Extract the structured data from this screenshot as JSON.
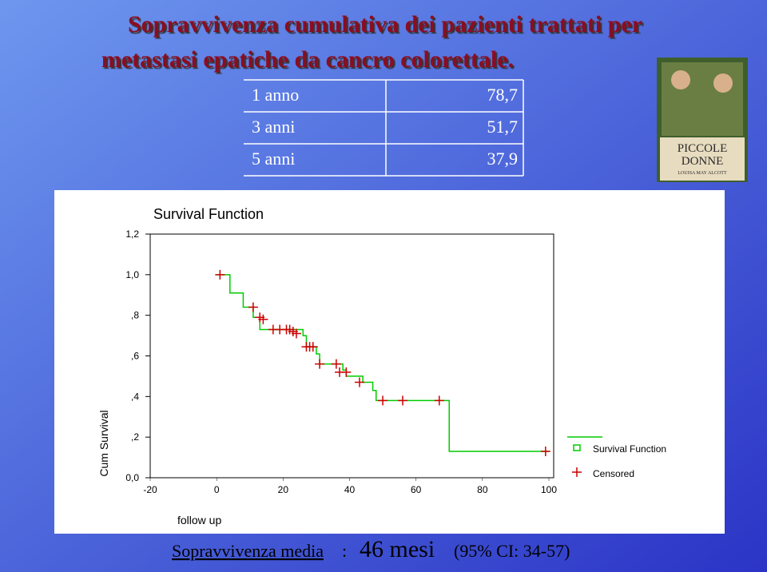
{
  "title": [
    "Sopravvivenza cumulativa dei pazienti trattati per",
    "metastasi epatiche da cancro colorettale."
  ],
  "table": {
    "rows": [
      [
        "1 anno",
        "78,7"
      ],
      [
        "3 anni",
        "51,7"
      ],
      [
        "5 anni",
        "37,9"
      ]
    ]
  },
  "book": {
    "title": [
      "PICCOLE",
      "DONNE"
    ],
    "author": "LOUISA MAY ALCOTT"
  },
  "footer": {
    "label": "Sopravvivenza media",
    "colon": ":",
    "value": "46 mesi",
    "ci": "(95% CI: 34-57)"
  },
  "chart_data": {
    "type": "line",
    "title": "Survival Function",
    "x_label": "follow up",
    "y_label": "Cum Survival",
    "steps": "post",
    "legend": "right",
    "xlim": [
      -20,
      100
    ],
    "xticks": [
      -20,
      0,
      20,
      40,
      60,
      80,
      100
    ],
    "ylim": [
      0,
      1.2
    ],
    "yticks": [
      {
        "value": 0,
        "label": "0,0"
      },
      {
        "value": 0.2,
        "label": ",2"
      },
      {
        "value": 0.4,
        "label": ",4"
      },
      {
        "value": 0.6,
        "label": ",6"
      },
      {
        "value": 0.8,
        "label": ",8"
      },
      {
        "value": 1.0,
        "label": "1,0"
      },
      {
        "value": 1.2,
        "label": "1,2"
      }
    ],
    "series": [
      {
        "name": "Survival Function",
        "color": "#00cc00",
        "marker": "square",
        "x": [
          0,
          4,
          8,
          11,
          13,
          26,
          27,
          30,
          31,
          38,
          39,
          44,
          47,
          48,
          70,
          100
        ],
        "values": [
          1.0,
          0.91,
          0.84,
          0.79,
          0.73,
          0.7,
          0.645,
          0.61,
          0.56,
          0.53,
          0.5,
          0.47,
          0.43,
          0.38,
          0.13,
          0.13
        ]
      },
      {
        "name": "Censored",
        "color": "#cc0000",
        "marker": "cross",
        "x": [
          1,
          11,
          13,
          14,
          17,
          19,
          21,
          22,
          23,
          24,
          27,
          28,
          29,
          31,
          36,
          37,
          39,
          43,
          50,
          56,
          67,
          99
        ],
        "values": [
          1.0,
          0.84,
          0.79,
          0.78,
          0.73,
          0.73,
          0.73,
          0.73,
          0.72,
          0.71,
          0.645,
          0.645,
          0.645,
          0.56,
          0.56,
          0.52,
          0.52,
          0.47,
          0.38,
          0.38,
          0.38,
          0.13
        ]
      }
    ]
  }
}
